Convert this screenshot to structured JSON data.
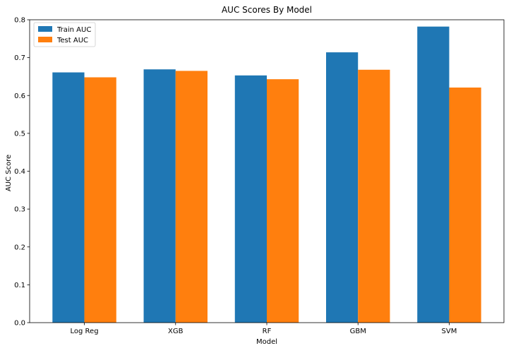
{
  "chart_data": {
    "type": "bar",
    "title": "AUC Scores By Model",
    "xlabel": "Model",
    "ylabel": "AUC Score",
    "categories": [
      "Log Reg",
      "XGB",
      "RF",
      "GBM",
      "SVM"
    ],
    "series": [
      {
        "name": "Train AUC",
        "color": "#1f77b4",
        "values": [
          0.661,
          0.669,
          0.653,
          0.714,
          0.782
        ]
      },
      {
        "name": "Test AUC",
        "color": "#ff7f0e",
        "values": [
          0.648,
          0.665,
          0.643,
          0.668,
          0.621
        ]
      }
    ],
    "ylim": [
      0,
      0.8
    ],
    "yticks": [
      0.0,
      0.1,
      0.2,
      0.3,
      0.4,
      0.5,
      0.6,
      0.7,
      0.8
    ],
    "ytick_labels": [
      "0.0",
      "0.1",
      "0.2",
      "0.3",
      "0.4",
      "0.5",
      "0.6",
      "0.7",
      "0.8"
    ],
    "grid": false,
    "legend_position": "top-left"
  }
}
